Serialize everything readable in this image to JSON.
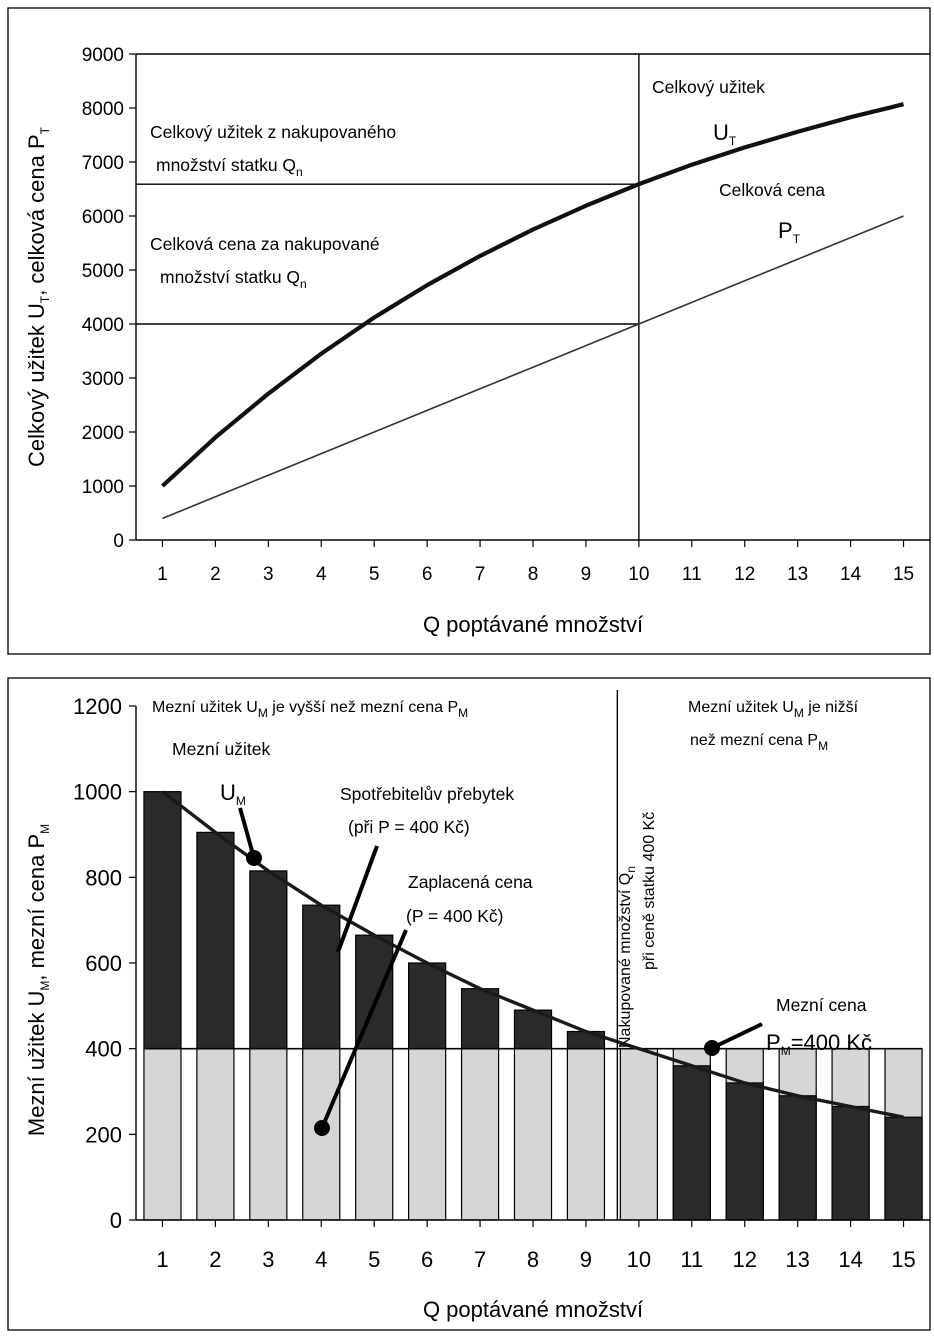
{
  "chart_data": [
    {
      "type": "line",
      "x": [
        1,
        2,
        3,
        4,
        5,
        6,
        7,
        8,
        9,
        10,
        11,
        12,
        13,
        14,
        15
      ],
      "xlim": [
        0.5,
        15.5
      ],
      "ylim": [
        0,
        9000
      ],
      "yticks": [
        0,
        1000,
        2000,
        3000,
        4000,
        5000,
        6000,
        7000,
        8000,
        9000
      ],
      "xlabel": "Q poptávané množství",
      "ylabel": "Celkový užitek U",
      "ylabel_sub": "T",
      "ylabel_rest": ", celková cena P",
      "ylabel_sub2": "T",
      "grid": false,
      "series": [
        {
          "name": "Celkový užitek U_T",
          "color": "#111111",
          "width": 4.2,
          "values": [
            1000,
            1900,
            2710,
            3450,
            4120,
            4720,
            5260,
            5750,
            6190,
            6590,
            6950,
            7270,
            7560,
            7830,
            8070
          ]
        },
        {
          "name": "Celková cena P_T",
          "color": "#333333",
          "width": 1.6,
          "values": [
            400,
            800,
            1200,
            1600,
            2000,
            2400,
            2800,
            3200,
            3600,
            4000,
            4400,
            4800,
            5200,
            5600,
            6000
          ]
        }
      ],
      "reference_lines": {
        "h_utility": 6590,
        "h_price": 4000,
        "v_quantity": 10
      },
      "annotations": {
        "ut_title": "Celkový užitek",
        "ut_symbol": "U",
        "ut_sub": "T",
        "pt_title": "Celková cena",
        "pt_symbol": "P",
        "pt_sub": "T",
        "utility_line1": "Celkový užitek z nakupovaného",
        "utility_line2": "množství statku Q",
        "utility_sub": "n",
        "price_line1": "Celková cena za nakupované",
        "price_line2": "množství statku Q",
        "price_sub": "n"
      }
    },
    {
      "type": "bar",
      "x": [
        1,
        2,
        3,
        4,
        5,
        6,
        7,
        8,
        9,
        10,
        11,
        12,
        13,
        14,
        15
      ],
      "xlim": [
        0.5,
        15.5
      ],
      "ylim": [
        0,
        1200
      ],
      "yticks": [
        0,
        200,
        400,
        600,
        800,
        1000,
        1200
      ],
      "xlabel": "Q poptávané množství",
      "ylabel": "Mezní užitek U",
      "ylabel_sub": "M",
      "ylabel_rest": ", mezní cena P",
      "ylabel_sub2": "M",
      "grid": false,
      "price": 400,
      "price_color": "#d6d6d6",
      "surplus_color": "#2a2a2a",
      "high_label": "Mezní užitek U",
      "high_sub": "M",
      "high_rest": " je vyšší než mezní cena P",
      "high_sub2": "M",
      "low_label1": "Mezní užitek U",
      "low_sub1": "M",
      "low_rest1": " je nižší",
      "low_label2": "než mezní cena P",
      "low_sub2": "M",
      "mu_title": "Mezní užitek",
      "mu_symbol": "U",
      "mu_sub": "M",
      "surplus_line1": "Spotřebitelův přebytek",
      "surplus_line2": "(při P = 400 Kč)",
      "paid_line1": "Zaplacená cena",
      "paid_line2": "(P = 400 Kč)",
      "vertical_line1": "Nakupované množství Q",
      "vertical_sub": "n",
      "vertical_line2": "při ceně statku 400 Kč",
      "mc_title": "Mezní cena",
      "mc_symbol": "P",
      "mc_sub": "M",
      "mc_value": "=400 Kč",
      "series": [
        {
          "name": "Mezní užitek U_M",
          "color": "#1a1a1a",
          "values": [
            1000,
            905,
            815,
            735,
            665,
            600,
            540,
            490,
            440,
            400,
            360,
            320,
            290,
            265,
            240
          ]
        },
        {
          "name": "Mezní cena P_M",
          "color": "#d6d6d6",
          "values": [
            400,
            400,
            400,
            400,
            400,
            400,
            400,
            400,
            400,
            400,
            400,
            400,
            400,
            400,
            400
          ]
        }
      ]
    }
  ]
}
